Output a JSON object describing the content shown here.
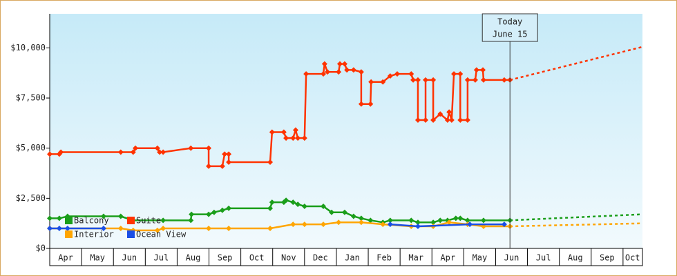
{
  "chart_data": {
    "type": "line",
    "ylim": [
      0,
      11700
    ],
    "yticks": [
      {
        "value": 0,
        "label": "$0"
      },
      {
        "value": 2500,
        "label": "$2,500"
      },
      {
        "value": 5000,
        "label": "$5,000"
      },
      {
        "value": 7500,
        "label": "$7,500"
      },
      {
        "value": 10000,
        "label": "$10,000"
      }
    ],
    "xlim": [
      0,
      18.61
    ],
    "xticks": [
      {
        "value": 0.5,
        "label": "Apr"
      },
      {
        "value": 1.5,
        "label": "May"
      },
      {
        "value": 2.5,
        "label": "Jun"
      },
      {
        "value": 3.5,
        "label": "Jul"
      },
      {
        "value": 4.5,
        "label": "Aug"
      },
      {
        "value": 5.5,
        "label": "Sep"
      },
      {
        "value": 6.5,
        "label": "Oct"
      },
      {
        "value": 7.5,
        "label": "Nov"
      },
      {
        "value": 8.5,
        "label": "Dec"
      },
      {
        "value": 9.5,
        "label": "Jan"
      },
      {
        "value": 10.5,
        "label": "Feb"
      },
      {
        "value": 11.5,
        "label": "Mar"
      },
      {
        "value": 12.5,
        "label": "Apr"
      },
      {
        "value": 13.5,
        "label": "May"
      },
      {
        "value": 14.5,
        "label": "Jun"
      },
      {
        "value": 15.5,
        "label": "Jul"
      },
      {
        "value": 16.5,
        "label": "Aug"
      },
      {
        "value": 17.5,
        "label": "Sep"
      },
      {
        "value": 18.3,
        "label": "Oct"
      }
    ],
    "legend": "bottom-left",
    "annotation": {
      "x": 14.45,
      "lines": [
        "Today",
        "June 15"
      ]
    },
    "series": [
      {
        "name": "Suite",
        "color": "#ff3300",
        "x": [
          0,
          0.3,
          0.35,
          2.23,
          2.62,
          2.69,
          3.38,
          3.45,
          3.56,
          4.43,
          4.99,
          4.99,
          5.42,
          5.49,
          5.62,
          5.62,
          6.92,
          6.98,
          7.35,
          7.42,
          7.64,
          7.72,
          7.79,
          8.0,
          8.05,
          8.59,
          8.63,
          8.72,
          9.07,
          9.11,
          9.26,
          9.33,
          9.54,
          9.78,
          9.78,
          10.07,
          10.09,
          10.46,
          10.69,
          10.91,
          11.35,
          11.41,
          11.56,
          11.56,
          11.8,
          11.8,
          12.04,
          12.04,
          12.26,
          12.49,
          12.54,
          12.62,
          12.69,
          12.89,
          12.89,
          13.12,
          13.12,
          13.36,
          13.4,
          13.6,
          13.62,
          14.27,
          14.45
        ],
        "values": [
          4700,
          4700,
          4800,
          4800,
          4800,
          5000,
          5000,
          4800,
          4800,
          5000,
          5000,
          4100,
          4100,
          4700,
          4700,
          4300,
          4300,
          5800,
          5800,
          5500,
          5500,
          5900,
          5500,
          5500,
          8700,
          8700,
          9200,
          8800,
          8800,
          9200,
          9200,
          8900,
          8900,
          8800,
          7200,
          7200,
          8300,
          8300,
          8600,
          8700,
          8700,
          8400,
          8400,
          6400,
          6400,
          8400,
          8400,
          6400,
          6700,
          6400,
          6800,
          6400,
          8700,
          8700,
          6400,
          6400,
          8400,
          8400,
          8900,
          8900,
          8400,
          8400,
          8400
        ],
        "forecast": {
          "x": [
            14.45,
            18.61
          ],
          "values": [
            8400,
            10050
          ]
        }
      },
      {
        "name": "Balcony",
        "color": "#1a9e1a",
        "x": [
          0,
          0.3,
          0.56,
          1.69,
          2.23,
          2.62,
          3.56,
          4.43,
          4.45,
          4.99,
          5.16,
          5.42,
          5.62,
          6.92,
          6.98,
          7.35,
          7.42,
          7.64,
          7.79,
          8.0,
          8.59,
          8.85,
          9.26,
          9.54,
          9.78,
          10.07,
          10.46,
          10.69,
          11.35,
          11.56,
          12.04,
          12.26,
          12.49,
          12.75,
          12.89,
          13.12,
          13.62,
          14.45
        ],
        "values": [
          1500,
          1500,
          1600,
          1600,
          1600,
          1400,
          1400,
          1400,
          1700,
          1700,
          1800,
          1900,
          2000,
          2000,
          2300,
          2300,
          2400,
          2300,
          2200,
          2100,
          2100,
          1800,
          1800,
          1600,
          1500,
          1400,
          1300,
          1400,
          1400,
          1300,
          1300,
          1400,
          1400,
          1500,
          1500,
          1400,
          1400,
          1400
        ],
        "forecast": {
          "x": [
            14.45,
            18.61
          ],
          "values": [
            1400,
            1700
          ]
        }
      },
      {
        "name": "Interior",
        "color": "#ffa500",
        "x": [
          0,
          2.23,
          2.62,
          3.38,
          3.56,
          4.99,
          5.62,
          6.92,
          7.64,
          8.0,
          8.59,
          9.07,
          9.78,
          10.46,
          11.35,
          12.04,
          12.54,
          13.12,
          13.62,
          14.45
        ],
        "values": [
          1000,
          1000,
          900,
          900,
          1000,
          1000,
          1000,
          1000,
          1200,
          1200,
          1200,
          1300,
          1300,
          1200,
          1100,
          1100,
          1300,
          1200,
          1100,
          1100
        ],
        "forecast": {
          "x": [
            14.45,
            18.61
          ],
          "values": [
            1100,
            1250
          ]
        }
      },
      {
        "name": "Ocean View",
        "color": "#1a4fe6",
        "x": [
          0,
          0.3,
          0.56,
          1.69,
          5.0,
          10.69,
          11.56,
          13.19,
          14.27
        ],
        "values": [
          1000,
          1000,
          1000,
          1000,
          null,
          1200,
          1100,
          1200,
          1200
        ]
      }
    ]
  }
}
